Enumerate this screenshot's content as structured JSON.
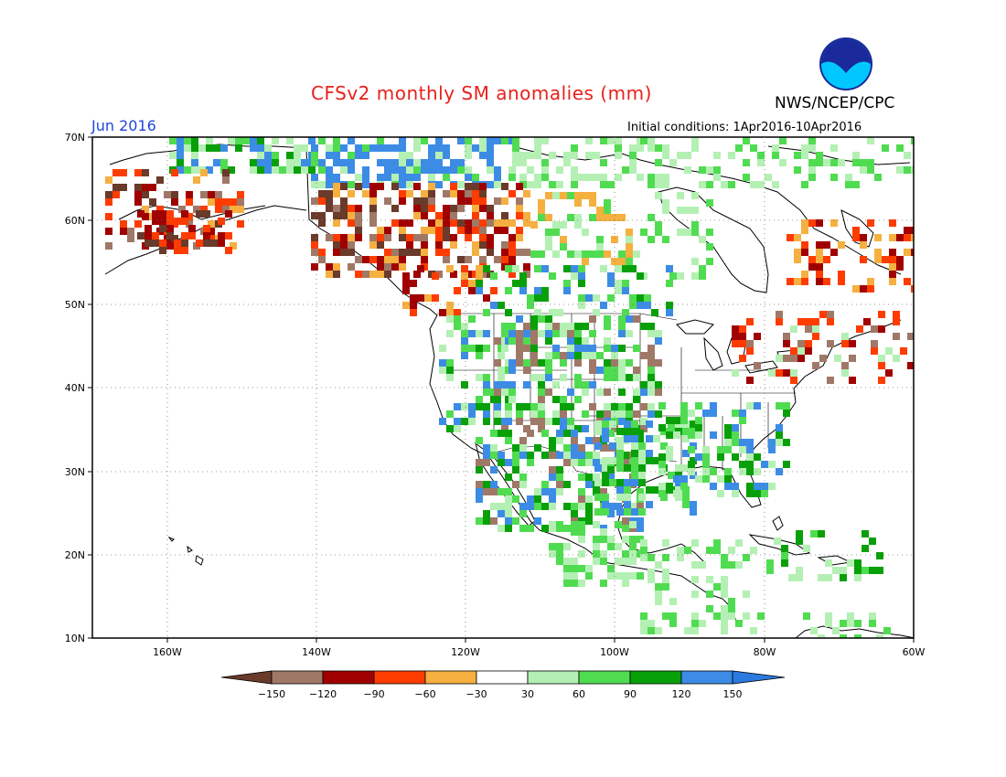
{
  "header": {
    "title": "CFSv2 monthly SM anomalies (mm)",
    "organization": "NWS/NCEP/CPC",
    "logo_text": "NOAA",
    "month": "Jun 2016",
    "initial_conditions": "Initial conditions: 1Apr2016-10Apr2016"
  },
  "map": {
    "lat_labels": [
      "70N",
      "60N",
      "50N",
      "40N",
      "30N",
      "20N",
      "10N"
    ],
    "lon_labels": [
      "160W",
      "140W",
      "120W",
      "100W",
      "80W",
      "60W"
    ],
    "lat_range": [
      10,
      70
    ],
    "lon_range": [
      -170,
      -60
    ]
  },
  "legend": {
    "colors": [
      "#6a3a2a",
      "#a07868",
      "#a00000",
      "#e03010",
      "#ff3c00",
      "#f5b040",
      "#ffffff",
      "#b4f0b4",
      "#50dc50",
      "#08a008",
      "#3c8ce6",
      "#2a7ae0"
    ],
    "boxes": [
      {
        "color": "#a07868"
      },
      {
        "color": "#a00000"
      },
      {
        "color": "#ff3c00"
      },
      {
        "color": "#f5b040"
      },
      {
        "color": "#ffffff"
      },
      {
        "color": "#b4f0b4"
      },
      {
        "color": "#50dc50"
      },
      {
        "color": "#08a008"
      },
      {
        "color": "#3c8ce6"
      }
    ],
    "labels": [
      "-150",
      "-120",
      "-90",
      "-60",
      "-30",
      "30",
      "60",
      "90",
      "120",
      "150"
    ]
  }
}
